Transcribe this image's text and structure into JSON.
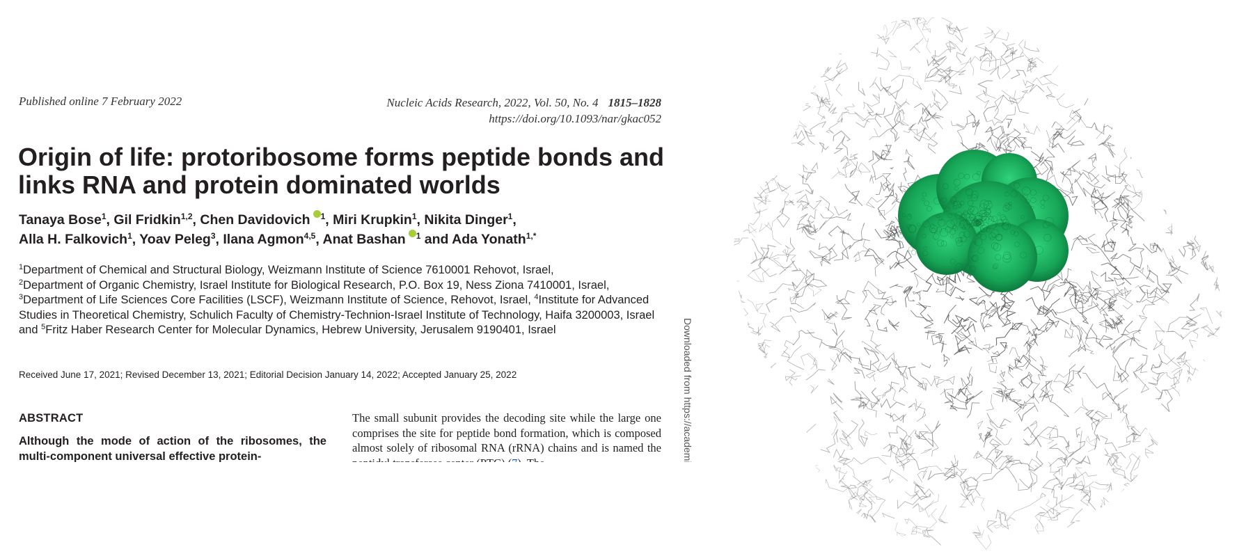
{
  "header": {
    "published": "Published online 7 February 2022",
    "journal": "Nucleic Acids Research, 2022, Vol. 50, No. 4",
    "pages": "1815–1828",
    "doi": "https://doi.org/10.1093/nar/gkac052"
  },
  "title": "Origin of life: protoribosome forms peptide bonds and links RNA and protein dominated worlds",
  "authors": [
    {
      "name": "Tanaya Bose",
      "sup": "1"
    },
    {
      "name": "Gil Fridkin",
      "sup": "1,2"
    },
    {
      "name": "Chen Davidovich",
      "sup": "1",
      "orcid": true
    },
    {
      "name": "Miri Krupkin",
      "sup": "1"
    },
    {
      "name": "Nikita Dinger",
      "sup": "1"
    },
    {
      "name": "Alla H. Falkovich",
      "sup": "1"
    },
    {
      "name": "Yoav Peleg",
      "sup": "3"
    },
    {
      "name": "Ilana Agmon",
      "sup": "4,5"
    },
    {
      "name": "Anat Bashan",
      "sup": "1",
      "orcid": true
    },
    {
      "name": "Ada Yonath",
      "sup": "1,*"
    }
  ],
  "author_conjunction": "and",
  "affiliations": [
    {
      "sup": "1",
      "text": "Department of Chemical and Structural Biology, Weizmann Institute of Science 7610001 Rehovot, Israel,"
    },
    {
      "sup": "2",
      "text": "Department of Organic Chemistry, Israel Institute for Biological Research, P.O. Box 19, Ness Ziona 7410001, Israel,"
    },
    {
      "sup": "3",
      "text": "Department of Life Sciences Core Facilities (LSCF), Weizmann Institute of Science, Rehovot, Israel,"
    },
    {
      "sup": "4",
      "text": "Institute for Advanced Studies in Theoretical Chemistry, Schulich Faculty of Chemistry-Technion-Israel Institute of Technology, Haifa 3200003, Israel and"
    },
    {
      "sup": "5",
      "text": "Fritz Haber Research Center for Molecular Dynamics, Hebrew University, Jerusalem 9190401, Israel"
    }
  ],
  "received": "Received June 17, 2021; Revised December 13, 2021; Editorial Decision January 14, 2022; Accepted January 25, 2022",
  "abstract": {
    "heading": "ABSTRACT",
    "text": "Although the mode of action of the ribosomes, the multi-component universal effective protein-"
  },
  "column2": {
    "text_before": "The small subunit provides the decoding site while the large one comprises the site for peptide bond formation, which is composed almost solely of ribosomal RNA (rRNA) chains and is named the peptidyl transferase center (PTC) (",
    "ref": "7",
    "text_after": "). The"
  },
  "side_note": "Downloaded from https://academic.oup.com/nar",
  "figure": {
    "wireframe_color": "#3a3a3a",
    "highlight_color": "#1fae5e"
  }
}
